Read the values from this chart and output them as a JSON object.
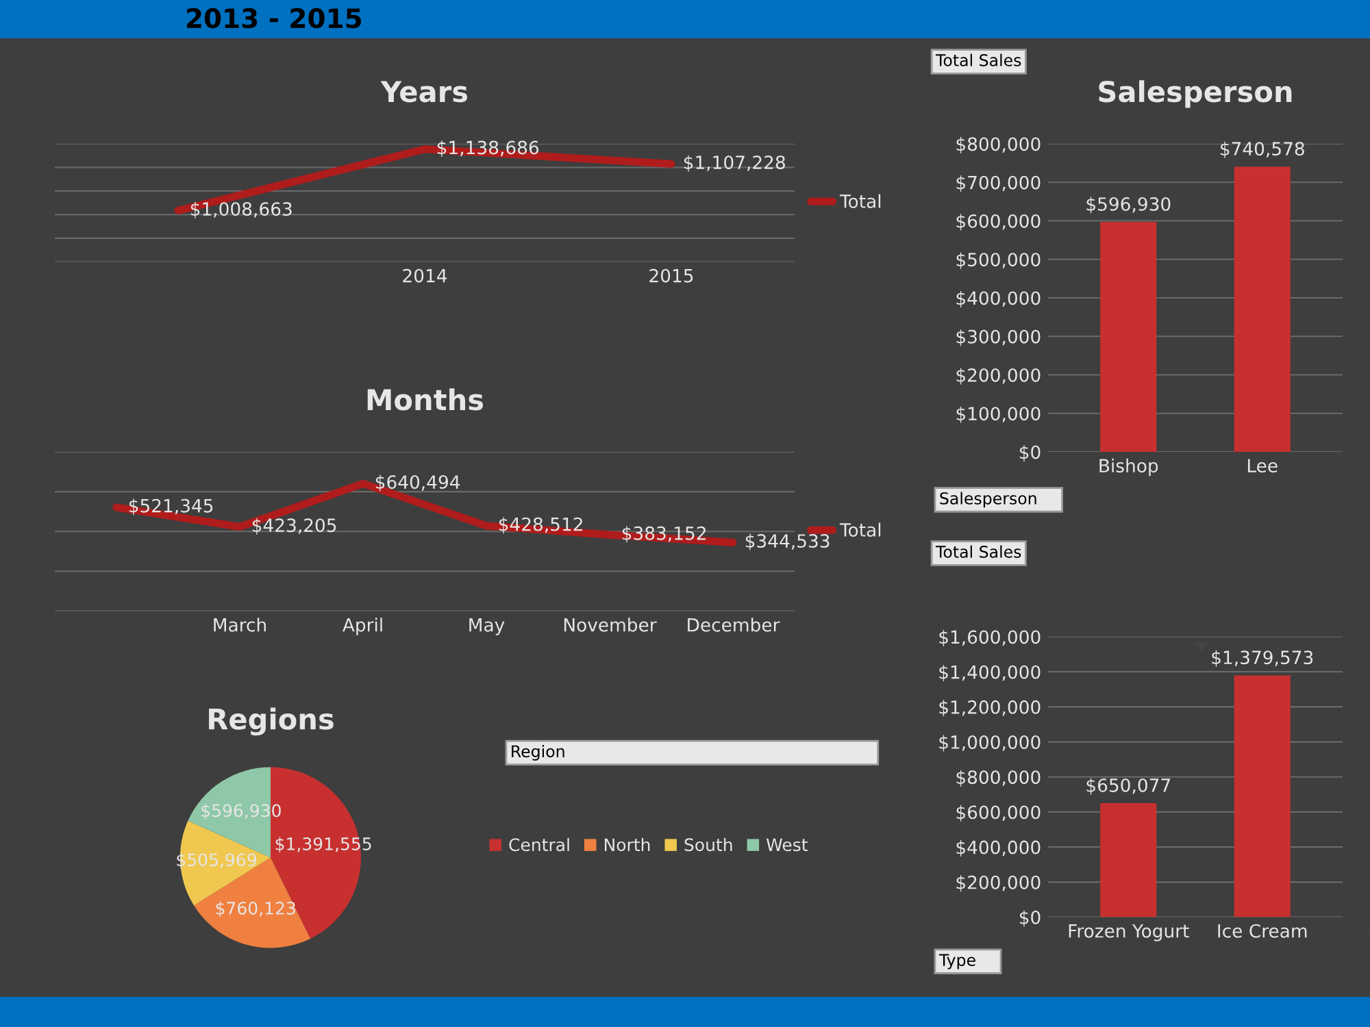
{
  "chart_data": [
    {
      "type": "line",
      "title": "Years",
      "annotations": [
        "2013 - 2015"
      ],
      "categories": [
        null,
        "2014",
        "2015"
      ],
      "series": [
        {
          "name": "Total",
          "color": "#b01c1c",
          "values": [
            1008663,
            1138686,
            1107228
          ],
          "value_labels": [
            "$1,008,663",
            "$1,138,686",
            "$1,107,228"
          ]
        }
      ],
      "ylim": [
        900000,
        1150000
      ],
      "yticks": [
        {
          "value": 900000,
          "label": null
        },
        {
          "value": 950000,
          "label": null
        },
        {
          "value": 1000000,
          "label": null
        },
        {
          "value": 1050000,
          "label": null
        },
        {
          "value": 1100000,
          "label": null
        },
        {
          "value": 1150000,
          "label": null
        }
      ],
      "grid": "y",
      "tick_labels": "x",
      "legend": "right"
    },
    {
      "type": "line",
      "title": "Months",
      "categories": [
        null,
        "March",
        "April",
        "May",
        "November",
        "December"
      ],
      "series": [
        {
          "name": "Total",
          "color": "#b01c1c",
          "values": [
            521345,
            423205,
            640494,
            428512,
            383152,
            344533
          ],
          "value_labels": [
            "$521,345",
            "$423,205",
            "$640,494",
            "$428,512",
            "$383,152",
            "$344,533"
          ]
        }
      ],
      "ylim": [
        0,
        800000
      ],
      "yticks": [
        {
          "value": 0,
          "label": null
        },
        {
          "value": 200000,
          "label": null
        },
        {
          "value": 400000,
          "label": null
        },
        {
          "value": 600000,
          "label": null
        },
        {
          "value": 800000,
          "label": null
        }
      ],
      "grid": "y",
      "tick_labels": "x",
      "legend": "right"
    },
    {
      "type": "pie",
      "title": "Regions",
      "legend_title": "Region",
      "categories": [
        "Central",
        "North",
        "South",
        "West"
      ],
      "values": [
        1391555,
        760123,
        505969,
        596930
      ],
      "colors": [
        "#c83030",
        "#f08040",
        "#f0c850",
        "#8fc8a8"
      ],
      "value_labels": [
        "$1,391,555",
        "$760,123",
        "$505,969",
        "$596,930"
      ],
      "legend": "right"
    },
    {
      "type": "bar",
      "title": "Salesperson",
      "xlabel": "Salesperson",
      "annotations": [
        "Total Sales"
      ],
      "categories": [
        "Bishop",
        "Lee"
      ],
      "values": [
        596930,
        740578
      ],
      "color": "#c83030",
      "value_labels": [
        "$596,930",
        "$740,578"
      ],
      "ylim": [
        0,
        800000
      ],
      "yticks": [
        {
          "value": 0,
          "label": "$0"
        },
        {
          "value": 100000,
          "label": "$100,000"
        },
        {
          "value": 200000,
          "label": "$200,000"
        },
        {
          "value": 300000,
          "label": "$300,000"
        },
        {
          "value": 400000,
          "label": "$400,000"
        },
        {
          "value": 500000,
          "label": "$500,000"
        },
        {
          "value": 600000,
          "label": "$600,000"
        },
        {
          "value": 700000,
          "label": "$700,000"
        },
        {
          "value": 800000,
          "label": "$800,000"
        }
      ],
      "grid": "y"
    },
    {
      "type": "bar",
      "xlabel": "Type",
      "annotations": [
        "Total Sales"
      ],
      "categories": [
        "Frozen Yogurt",
        "Ice Cream"
      ],
      "values": [
        650077,
        1379573
      ],
      "color": "#c83030",
      "value_labels": [
        "$650,077",
        "$1,379,573"
      ],
      "ylim": [
        0,
        1600000
      ],
      "yticks": [
        {
          "value": 0,
          "label": "$0"
        },
        {
          "value": 200000,
          "label": "$200,000"
        },
        {
          "value": 400000,
          "label": "$400,000"
        },
        {
          "value": 600000,
          "label": "$600,000"
        },
        {
          "value": 800000,
          "label": "$800,000"
        },
        {
          "value": 1000000,
          "label": "$1,000,000"
        },
        {
          "value": 1200000,
          "label": "$1,200,000"
        },
        {
          "value": 1400000,
          "label": "$1,400,000"
        },
        {
          "value": 1600000,
          "label": "$1,600,000"
        }
      ],
      "grid": "y"
    }
  ]
}
